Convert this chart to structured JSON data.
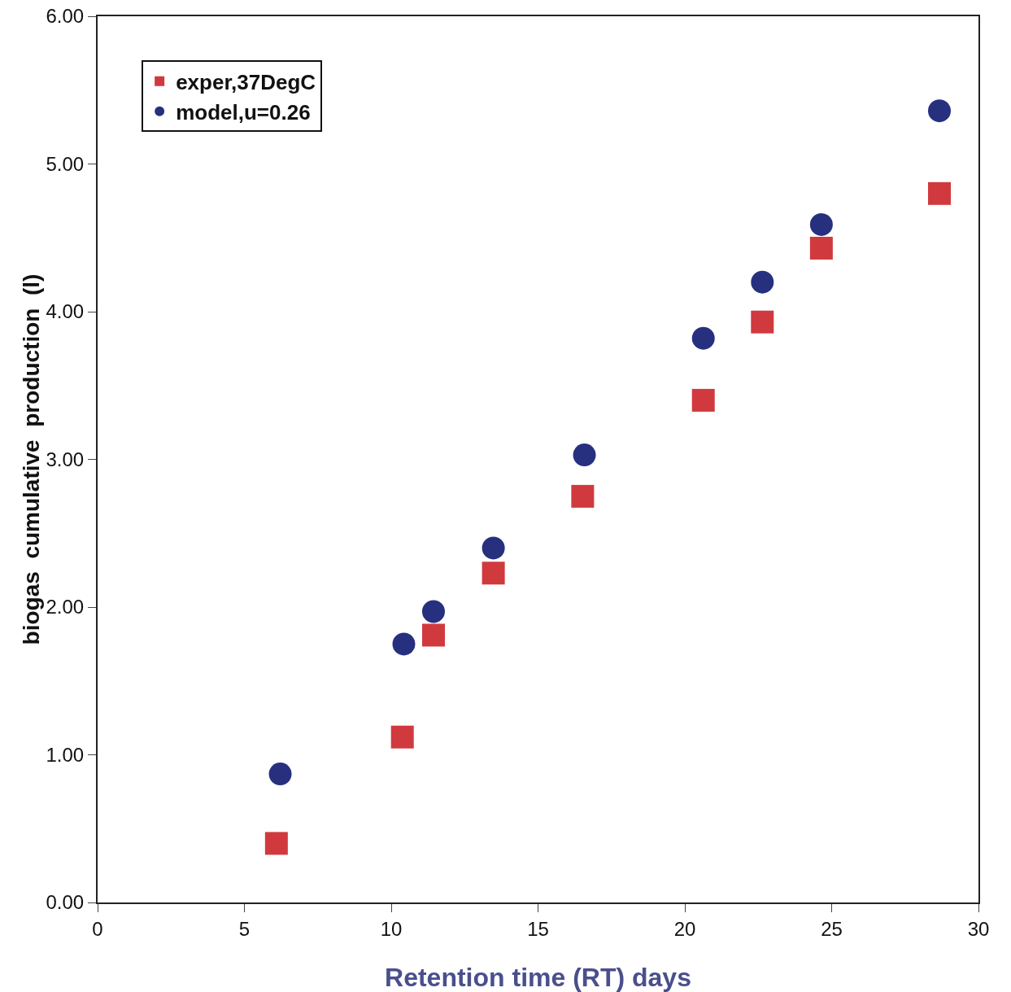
{
  "chart_data": {
    "type": "scatter",
    "xlabel": "Retention time (RT) days",
    "ylabel": "biogas  cumulative  production  (l)",
    "series": [
      {
        "name": "exper,37DegC",
        "color": "#d03a3e",
        "marker": "square",
        "x": [
          6.09,
          10.38,
          11.44,
          13.48,
          16.52,
          20.63,
          22.64,
          24.65,
          28.67
        ],
        "values": [
          0.4,
          1.12,
          1.81,
          2.23,
          2.75,
          3.4,
          3.93,
          4.43,
          4.8
        ]
      },
      {
        "name": "model,u=0.26",
        "color": "#27307f",
        "marker": "circle",
        "x": [
          6.22,
          10.43,
          11.44,
          13.48,
          16.58,
          20.63,
          22.64,
          24.65,
          28.67
        ],
        "values": [
          0.87,
          1.75,
          1.97,
          2.4,
          3.03,
          3.82,
          4.2,
          4.59,
          5.36
        ]
      }
    ],
    "xlim": [
      0,
      30
    ],
    "xticks": [
      0,
      5,
      10,
      15,
      20,
      25,
      30
    ],
    "ylim": [
      0,
      6
    ],
    "yticks": [
      {
        "value": 0,
        "label": "0.00"
      },
      {
        "value": 1,
        "label": "1.00"
      },
      {
        "value": 2,
        "label": "2.00"
      },
      {
        "value": 3,
        "label": "3.00"
      },
      {
        "value": 4,
        "label": "4.00"
      },
      {
        "value": 5,
        "label": "5.00"
      },
      {
        "value": 6,
        "label": "6.00"
      }
    ],
    "grid": false,
    "legend": "top left"
  }
}
